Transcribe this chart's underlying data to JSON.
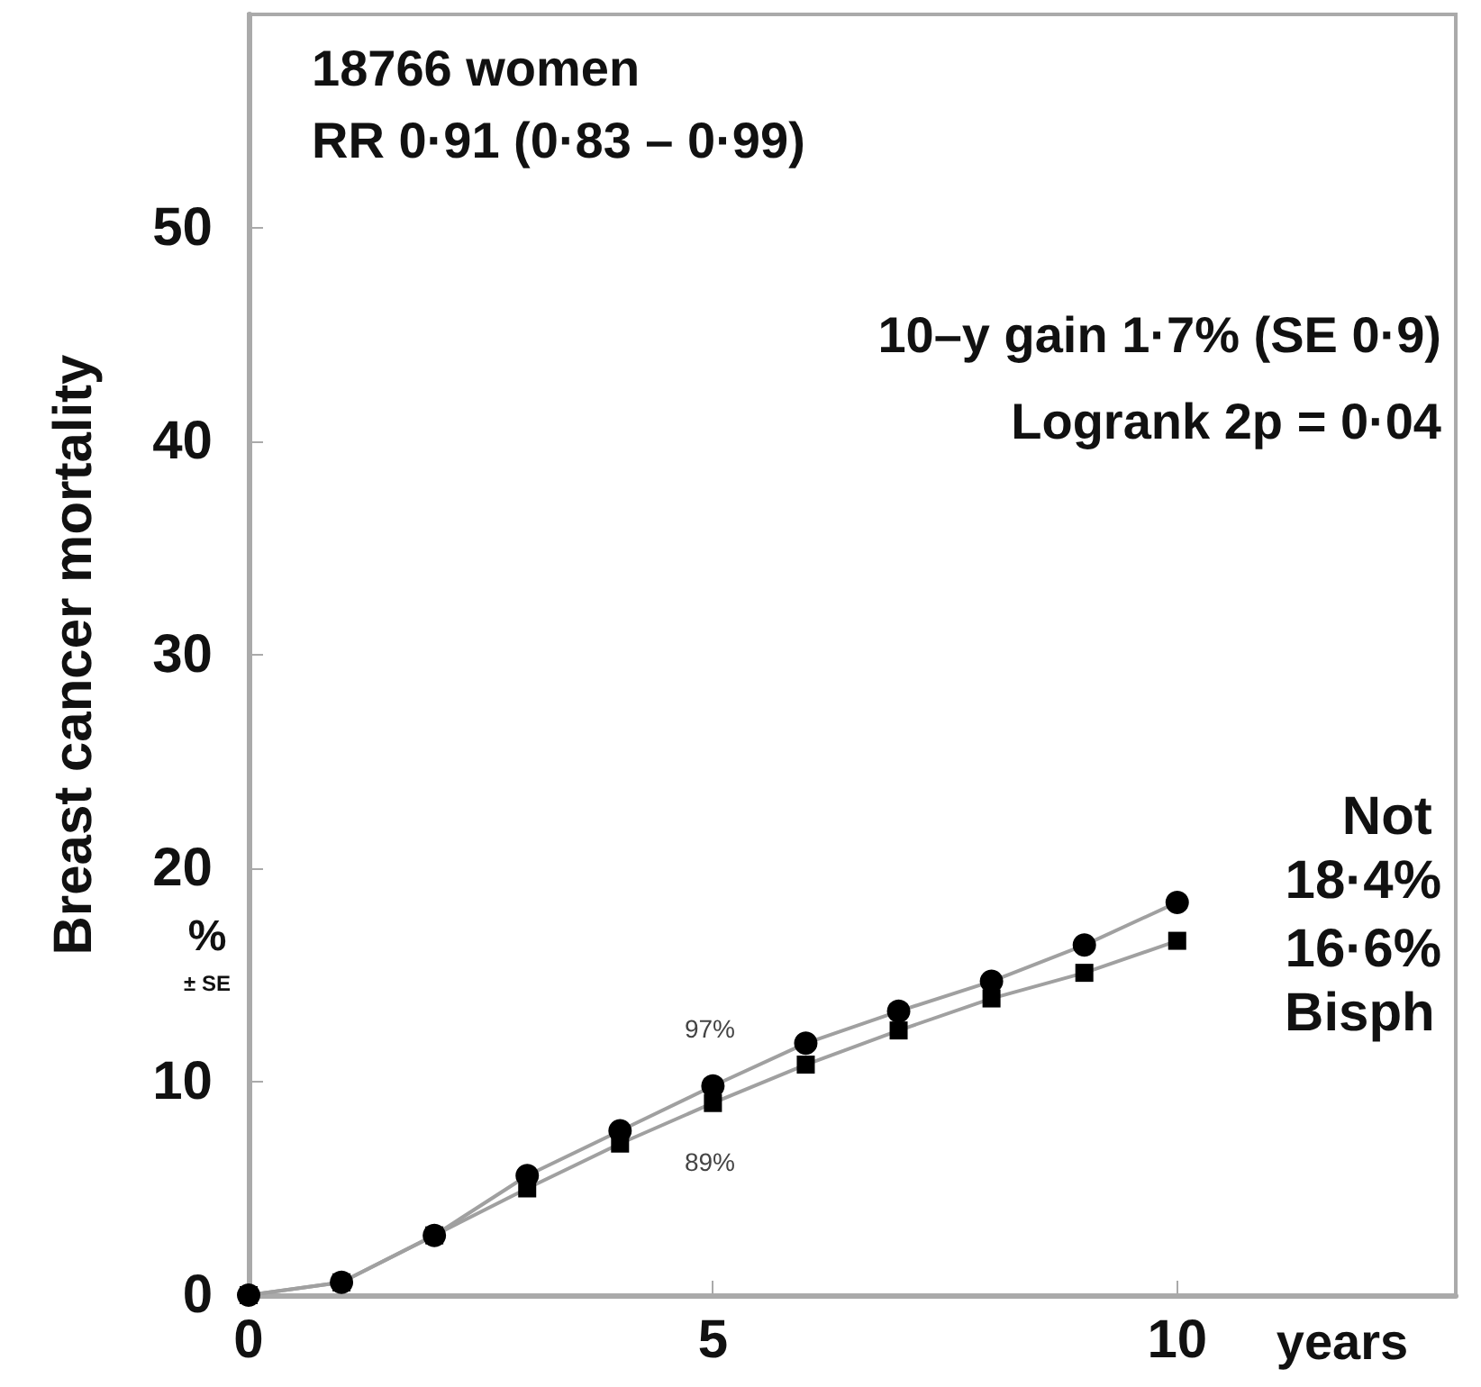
{
  "chart_data": {
    "type": "line",
    "xlabel": "years",
    "ylabel": "Breast cancer mortality",
    "x": [
      0,
      1,
      2,
      3,
      4,
      5,
      6,
      7,
      8,
      9,
      10
    ],
    "series": [
      {
        "name": "Not",
        "color": "#000000",
        "marker": "circle",
        "values": [
          0,
          0.6,
          2.8,
          5.6,
          7.7,
          9.8,
          11.8,
          13.3,
          14.7,
          16.4,
          18.4
        ]
      },
      {
        "name": "Bisph",
        "color": "#000000",
        "marker": "square",
        "values": [
          0,
          0.6,
          2.8,
          5.0,
          7.1,
          9.0,
          10.8,
          12.4,
          13.9,
          15.1,
          16.6
        ]
      }
    ],
    "xlim": [
      0,
      13
    ],
    "xticks": [
      0,
      5,
      10
    ],
    "ylim": [
      0,
      60
    ],
    "yticks": [
      0,
      10,
      20,
      30,
      40,
      50
    ],
    "grid": false,
    "legend": false,
    "annotations": [
      "18766 women",
      "RR 0·91 (0·83 – 0·99)",
      "10–y gain 1·7% (SE 0·9)",
      "Logrank 2p = 0·04",
      "97%",
      "89%",
      "%",
      "± SE",
      "18·4%",
      "16·6%"
    ]
  }
}
